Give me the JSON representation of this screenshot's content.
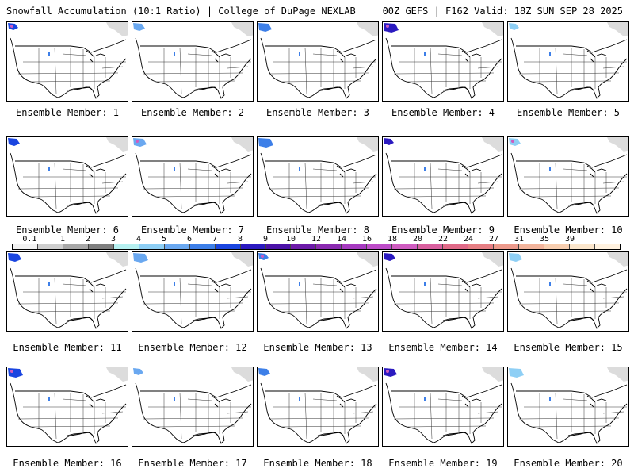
{
  "header": {
    "title_left": "Snowfall Accumulation (10:1 Ratio) | College of DuPage NEXLAB",
    "title_right": "00Z GEFS | F162 Valid: 18Z SUN SEP 28 2025"
  },
  "panels": [
    {
      "label": "Ensemble Member: 1"
    },
    {
      "label": "Ensemble Member: 2"
    },
    {
      "label": "Ensemble Member: 3"
    },
    {
      "label": "Ensemble Member: 4"
    },
    {
      "label": "Ensemble Member: 5"
    },
    {
      "label": "Ensemble Member: 6"
    },
    {
      "label": "Ensemble Member: 7"
    },
    {
      "label": "Ensemble Member: 8"
    },
    {
      "label": "Ensemble Member: 9"
    },
    {
      "label": "Ensemble Member: 10"
    },
    {
      "label": "Ensemble Member: 11"
    },
    {
      "label": "Ensemble Member: 12"
    },
    {
      "label": "Ensemble Member: 13"
    },
    {
      "label": "Ensemble Member: 14"
    },
    {
      "label": "Ensemble Member: 15"
    },
    {
      "label": "Ensemble Member: 16"
    },
    {
      "label": "Ensemble Member: 17"
    },
    {
      "label": "Ensemble Member: 18"
    },
    {
      "label": "Ensemble Member: 19"
    },
    {
      "label": "Ensemble Member: 20"
    }
  ],
  "colorbar": {
    "labels": [
      "0.1",
      "1",
      "2",
      "3",
      "4",
      "5",
      "6",
      "7",
      "8",
      "9",
      "10",
      "12",
      "14",
      "16",
      "18",
      "20",
      "22",
      "24",
      "27",
      "31",
      "35",
      "39"
    ],
    "colors": [
      "#f2f2f2",
      "#cfcfcf",
      "#a8a8a8",
      "#7f7f7f",
      "#b6f0f0",
      "#8ecff5",
      "#6aa8f0",
      "#3d7fe8",
      "#1a45e0",
      "#2b1ac0",
      "#4b12a8",
      "#6c1aa8",
      "#8a2ab0",
      "#a63ac0",
      "#bd4cc8",
      "#cf5cc0",
      "#d9609f",
      "#e06a88",
      "#e67f84",
      "#ec9a8c",
      "#f2b49c",
      "#f7ceb0",
      "#fbe6cc",
      "#fff2e0"
    ]
  }
}
